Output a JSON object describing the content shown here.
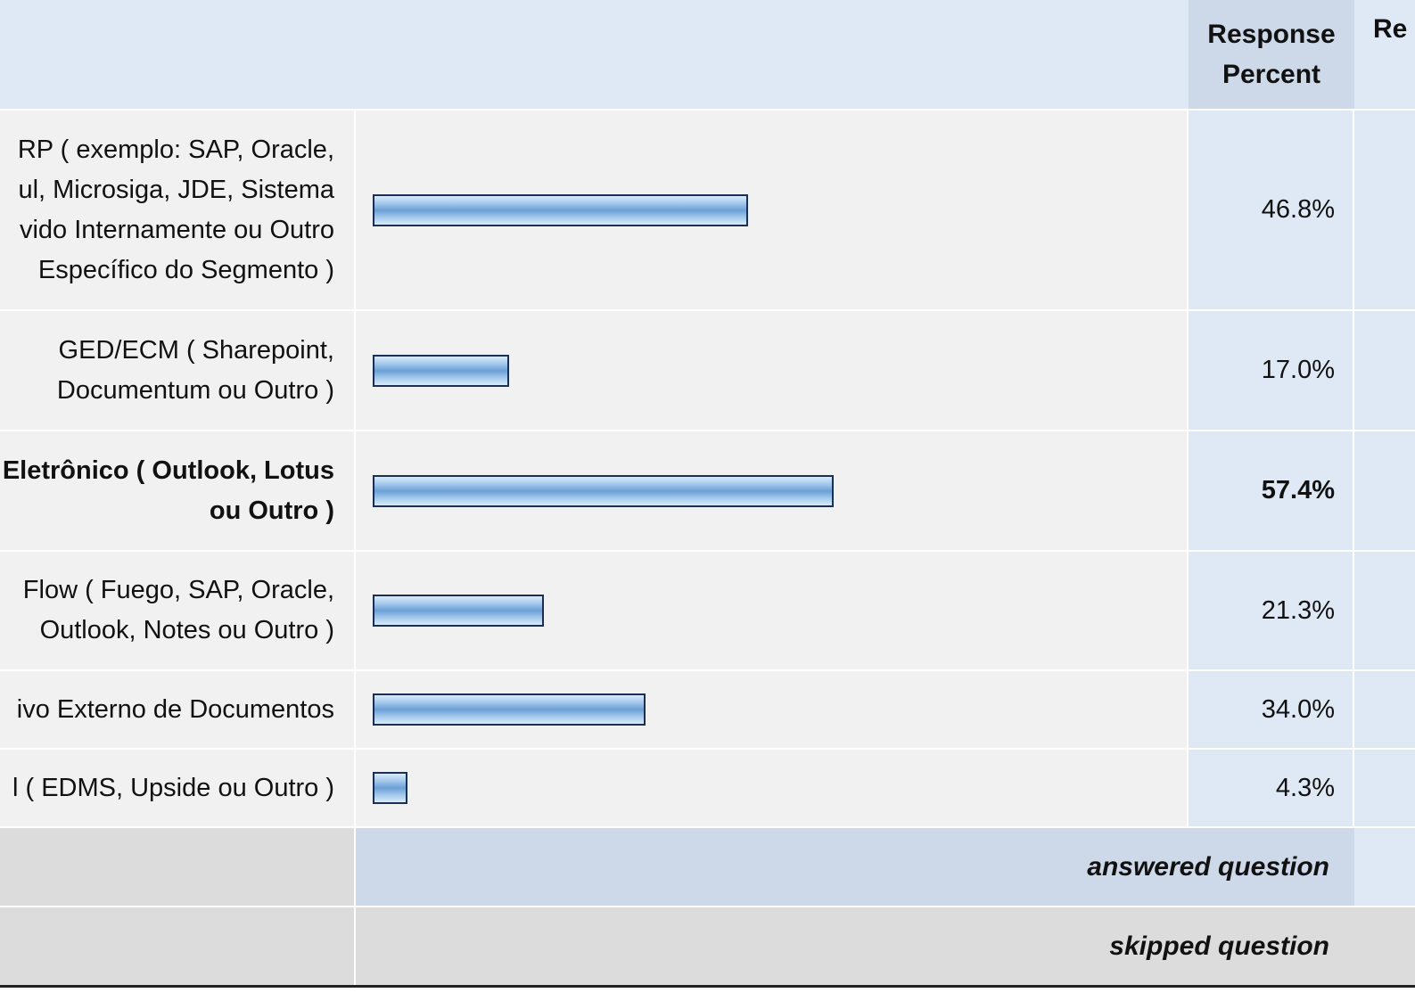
{
  "header": {
    "response_percent": "Response Percent",
    "response_count_partial": "Re"
  },
  "rows": [
    {
      "lines": [
        "RP ( exemplo: SAP, Oracle,",
        "ul, Microsiga, JDE, Sistema",
        "vido Internamente ou Outro",
        "Específico do Segmento )"
      ],
      "percent_label": "46.8%",
      "value": 46.8,
      "bold": false
    },
    {
      "lines": [
        "GED/ECM ( Sharepoint,",
        "Documentum ou Outro )"
      ],
      "percent_label": "17.0%",
      "value": 17.0,
      "bold": false
    },
    {
      "lines": [
        "Eletrônico ( Outlook, Lotus",
        "ou Outro )"
      ],
      "percent_label": "57.4%",
      "value": 57.4,
      "bold": true
    },
    {
      "lines": [
        "Flow ( Fuego, SAP, Oracle,",
        "Outlook, Notes ou Outro )"
      ],
      "percent_label": "21.3%",
      "value": 21.3,
      "bold": false
    },
    {
      "lines": [
        "ivo Externo de Documentos"
      ],
      "percent_label": "34.0%",
      "value": 34.0,
      "bold": false
    },
    {
      "lines": [
        "l ( EDMS, Upside ou Outro )"
      ],
      "percent_label": "4.3%",
      "value": 4.3,
      "bold": false
    }
  ],
  "footer": {
    "answered": "answered question",
    "skipped": "skipped question"
  },
  "colors": {
    "header_bg": "#dfe9f5",
    "header_accent": "#cdd9e8",
    "row_bg": "#f0f1f0",
    "bar_fill": "#a5c9ec",
    "bar_border": "#1c2f52",
    "footer_bg": "#dcdcdc"
  },
  "chart_data": {
    "type": "bar",
    "orientation": "horizontal",
    "categories": [
      "RP ( exemplo: SAP, Oracle, ul, Microsiga, JDE, Sistema vido Internamente ou Outro Específico do Segmento )",
      "GED/ECM ( Sharepoint, Documentum ou Outro )",
      "Eletrônico ( Outlook, Lotus ou Outro )",
      "Flow ( Fuego, SAP, Oracle, Outlook, Notes ou Outro )",
      "ivo Externo de Documentos",
      "l ( EDMS, Upside ou Outro )"
    ],
    "values": [
      46.8,
      17.0,
      57.4,
      21.3,
      34.0,
      4.3
    ],
    "xlim": [
      0,
      100
    ],
    "grid": false
  }
}
